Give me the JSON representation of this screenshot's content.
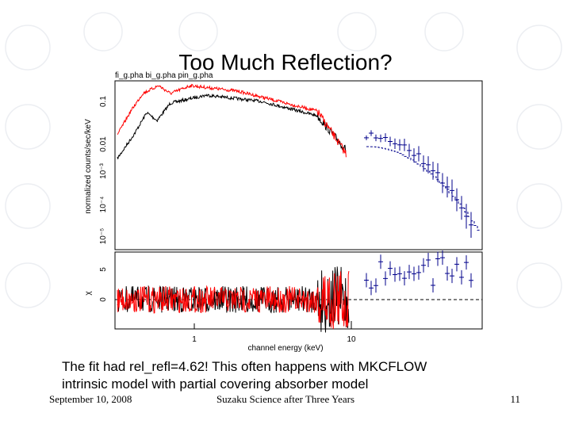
{
  "slide": {
    "title": "Too Much Reflection?",
    "body": [
      "The fit had rel_refl=4.62!  This often happens with MKCFLOW",
      "intrinsic model with partial covering absorber model"
    ],
    "footer": {
      "date": "September 10, 2008",
      "center": "Suzaku Science after Three Years",
      "page": "11"
    }
  },
  "plot": {
    "header": "fi_g.pha  bi_g.pha  pin_g.pha",
    "ylabel_top": "normalized counts/sec/keV",
    "ylabel_bottom": "χ",
    "xlabel": "channel energy (keV)",
    "yticks_top": [
      "0.1",
      "0.01",
      "10⁻³",
      "10⁻⁴",
      "10⁻⁵"
    ],
    "yticks_bottom": [
      "5",
      "0"
    ],
    "xticks": [
      "1",
      "10"
    ]
  }
}
